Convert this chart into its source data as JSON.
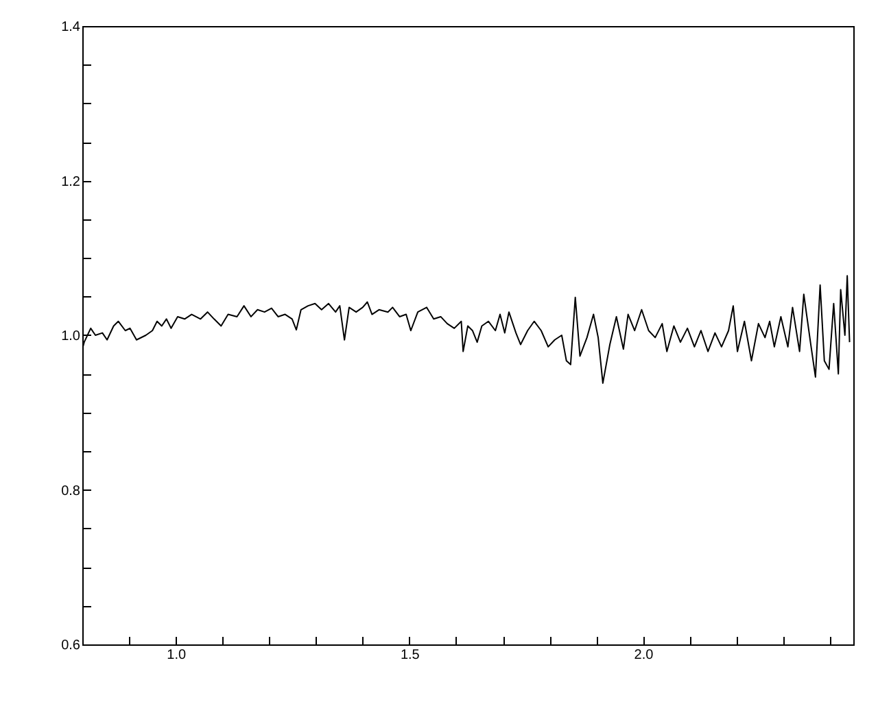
{
  "chart_data": {
    "type": "line",
    "xlim": [
      0.8,
      2.45
    ],
    "ylim": [
      0.6,
      1.4
    ],
    "xticks": [
      {
        "value": 0.9,
        "label": null
      },
      {
        "value": 1.0,
        "label": "1.0"
      },
      {
        "value": 1.1,
        "label": null
      },
      {
        "value": 1.2,
        "label": null
      },
      {
        "value": 1.3,
        "label": null
      },
      {
        "value": 1.4,
        "label": null
      },
      {
        "value": 1.5,
        "label": "1.5"
      },
      {
        "value": 1.6,
        "label": null
      },
      {
        "value": 1.7,
        "label": null
      },
      {
        "value": 1.8,
        "label": null
      },
      {
        "value": 1.9,
        "label": null
      },
      {
        "value": 2.0,
        "label": "2.0"
      },
      {
        "value": 2.1,
        "label": null
      },
      {
        "value": 2.2,
        "label": null
      },
      {
        "value": 2.3,
        "label": null
      },
      {
        "value": 2.4,
        "label": null
      }
    ],
    "yticks": [
      {
        "value": 0.6,
        "label": "0.6"
      },
      {
        "value": 0.65,
        "label": null
      },
      {
        "value": 0.7,
        "label": null
      },
      {
        "value": 0.75,
        "label": null
      },
      {
        "value": 0.8,
        "label": "0.8"
      },
      {
        "value": 0.85,
        "label": null
      },
      {
        "value": 0.9,
        "label": null
      },
      {
        "value": 0.95,
        "label": null
      },
      {
        "value": 1.0,
        "label": "1.0"
      },
      {
        "value": 1.05,
        "label": null
      },
      {
        "value": 1.1,
        "label": null
      },
      {
        "value": 1.15,
        "label": null
      },
      {
        "value": 1.2,
        "label": "1.2"
      },
      {
        "value": 1.25,
        "label": null
      },
      {
        "value": 1.3,
        "label": null
      },
      {
        "value": 1.35,
        "label": null
      },
      {
        "value": 1.4,
        "label": "1.4"
      }
    ],
    "grid": false,
    "marker": "none",
    "line_style": "solid",
    "series": [
      {
        "color": "#000000",
        "x": [
          0.8,
          0.804,
          0.818,
          0.828,
          0.843,
          0.853,
          0.867,
          0.877,
          0.892,
          0.902,
          0.916,
          0.936,
          0.95,
          0.96,
          0.97,
          0.98,
          0.99,
          1.004,
          1.019,
          1.034,
          1.053,
          1.068,
          1.082,
          1.097,
          1.112,
          1.131,
          1.146,
          1.161,
          1.175,
          1.19,
          1.205,
          1.219,
          1.234,
          1.249,
          1.258,
          1.268,
          1.283,
          1.298,
          1.312,
          1.327,
          1.342,
          1.351,
          1.361,
          1.371,
          1.386,
          1.4,
          1.41,
          1.42,
          1.435,
          1.454,
          1.464,
          1.479,
          1.493,
          1.503,
          1.518,
          1.537,
          1.552,
          1.567,
          1.581,
          1.596,
          1.611,
          1.615,
          1.625,
          1.635,
          1.645,
          1.655,
          1.669,
          1.684,
          1.694,
          1.704,
          1.713,
          1.728,
          1.738,
          1.753,
          1.767,
          1.782,
          1.797,
          1.811,
          1.826,
          1.836,
          1.845,
          1.855,
          1.865,
          1.88,
          1.894,
          1.904,
          1.914,
          1.929,
          1.943,
          1.958,
          1.968,
          1.982,
          1.997,
          2.012,
          2.026,
          2.041,
          2.051,
          2.066,
          2.08,
          2.095,
          2.11,
          2.124,
          2.139,
          2.154,
          2.168,
          2.183,
          2.193,
          2.202,
          2.217,
          2.232,
          2.247,
          2.261,
          2.271,
          2.281,
          2.295,
          2.31,
          2.32,
          2.335,
          2.344,
          2.359,
          2.369,
          2.379,
          2.388,
          2.398,
          2.408,
          2.418,
          2.423,
          2.432,
          2.437,
          2.442
        ],
        "values": [
          0.982,
          0.991,
          1.009,
          1.0,
          1.003,
          0.994,
          1.012,
          1.018,
          1.006,
          1.009,
          0.994,
          1.0,
          1.006,
          1.018,
          1.012,
          1.021,
          1.009,
          1.024,
          1.021,
          1.027,
          1.021,
          1.03,
          1.021,
          1.012,
          1.027,
          1.024,
          1.038,
          1.024,
          1.033,
          1.03,
          1.035,
          1.024,
          1.027,
          1.021,
          1.007,
          1.033,
          1.038,
          1.041,
          1.033,
          1.041,
          1.03,
          1.038,
          0.994,
          1.036,
          1.03,
          1.036,
          1.043,
          1.027,
          1.033,
          1.03,
          1.036,
          1.024,
          1.027,
          1.006,
          1.03,
          1.036,
          1.021,
          1.024,
          1.015,
          1.009,
          1.018,
          0.979,
          1.012,
          1.006,
          0.991,
          1.012,
          1.018,
          1.006,
          1.027,
          1.003,
          1.03,
          1.003,
          0.988,
          1.006,
          1.018,
          1.006,
          0.985,
          0.994,
          1.0,
          0.967,
          0.962,
          1.049,
          0.973,
          0.997,
          1.027,
          0.997,
          0.938,
          0.988,
          1.024,
          0.982,
          1.027,
          1.006,
          1.033,
          1.006,
          0.997,
          1.015,
          0.979,
          1.012,
          0.991,
          1.009,
          0.985,
          1.006,
          0.979,
          1.003,
          0.985,
          1.006,
          1.038,
          0.979,
          1.018,
          0.967,
          1.015,
          0.997,
          1.018,
          0.985,
          1.024,
          0.985,
          1.036,
          0.979,
          1.053,
          0.988,
          0.946,
          1.065,
          0.967,
          0.956,
          1.041,
          0.95,
          1.059,
          1.0,
          1.077,
          0.991
        ]
      }
    ]
  }
}
